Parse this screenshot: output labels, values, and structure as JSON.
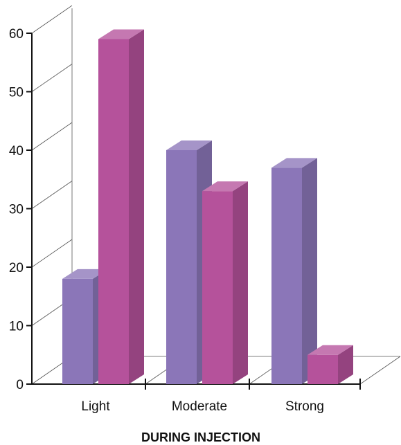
{
  "chart_data": {
    "type": "bar",
    "categories": [
      "Light",
      "Moderate",
      "Strong"
    ],
    "series": [
      {
        "values": [
          18,
          40,
          37
        ],
        "color": "#8b76b8"
      },
      {
        "values": [
          59,
          33,
          5
        ],
        "color": "#b5529b"
      }
    ],
    "ylim": [
      0,
      60
    ],
    "yticks": [
      0,
      10,
      20,
      30,
      40,
      50,
      60
    ],
    "xlabel": "DURING INJECTION",
    "ylabel": "",
    "title": "",
    "grid": true,
    "style": "3d"
  }
}
